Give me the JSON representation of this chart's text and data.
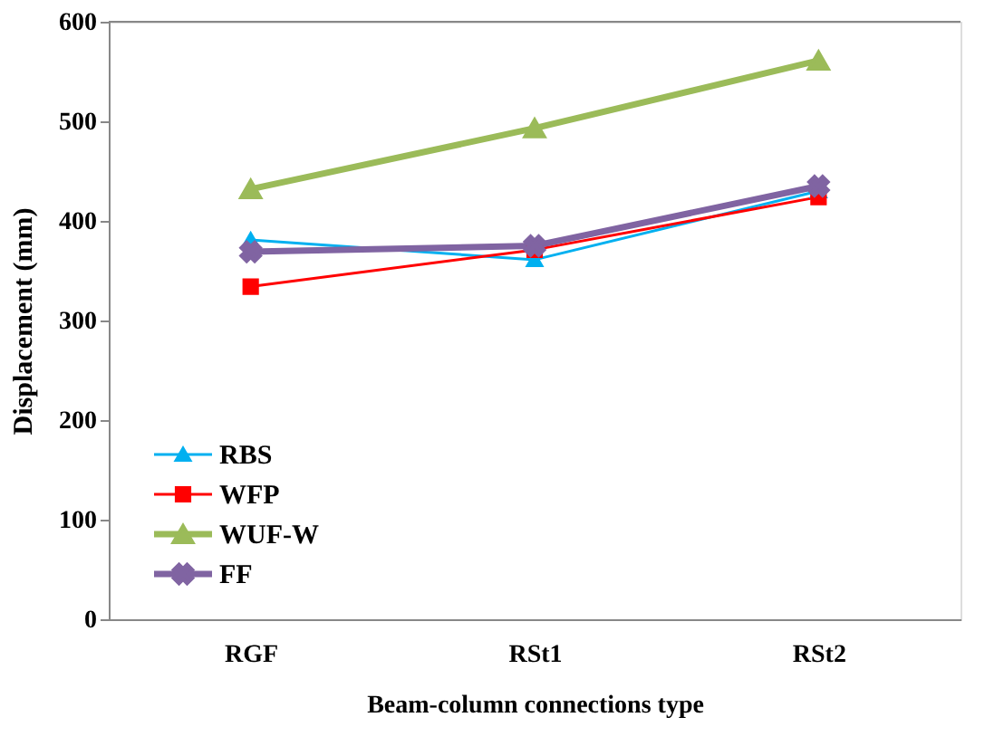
{
  "chart_data": {
    "type": "line",
    "xlabel": "Beam-column connections type",
    "ylabel": "Displacement (mm)",
    "categories": [
      "RGF",
      "RSt1",
      "RSt2"
    ],
    "series": [
      {
        "name": "RBS",
        "color": "#00b0f0",
        "marker": "triangle",
        "values": [
          381,
          361,
          430
        ]
      },
      {
        "name": "WFP",
        "color": "#ff0000",
        "marker": "square",
        "values": [
          334,
          371,
          424
        ]
      },
      {
        "name": "WUF-W",
        "color": "#9bbb59",
        "marker": "triangle",
        "values": [
          432,
          493,
          561
        ]
      },
      {
        "name": "FF",
        "color": "#8064a2",
        "marker": "cross",
        "values": [
          369,
          375,
          435
        ]
      }
    ],
    "ylim": [
      0,
      600
    ],
    "yticks": [
      0,
      100,
      200,
      300,
      400,
      500,
      600
    ],
    "grid": false,
    "legend": "bottom left"
  }
}
